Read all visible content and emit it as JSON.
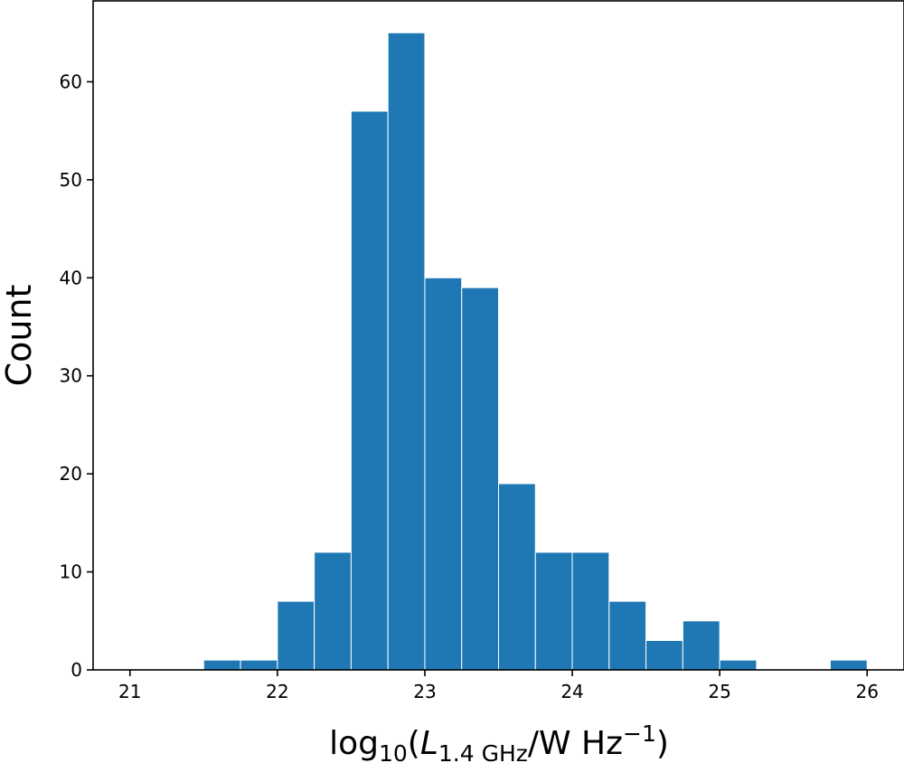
{
  "chart_data": {
    "type": "bar",
    "histogram": true,
    "bin_edges": [
      21.5,
      21.75,
      22.0,
      22.25,
      22.5,
      22.75,
      23.0,
      23.25,
      23.5,
      23.75,
      24.0,
      24.25,
      24.5,
      24.75,
      25.0,
      25.25,
      25.5,
      25.75,
      26.0
    ],
    "values": [
      1,
      1,
      7,
      12,
      57,
      65,
      40,
      39,
      19,
      12,
      12,
      7,
      3,
      5,
      1,
      0,
      0,
      1
    ],
    "xlim": [
      20.75,
      26.25
    ],
    "ylim": [
      0,
      68.25
    ],
    "x_ticks": [
      21,
      22,
      23,
      24,
      25,
      26
    ],
    "y_ticks": [
      0,
      10,
      20,
      30,
      40,
      50,
      60
    ],
    "ylabel": "Count",
    "xlabel": {
      "prefix": "log",
      "prefix_sub": "10",
      "open": "(",
      "var": "L",
      "var_sub": "1.4 GHz",
      "unit": "/W Hz",
      "unit_sup": "−1",
      "close": ")"
    },
    "grid": false,
    "colors": {
      "bars": "#1f77b4"
    }
  }
}
